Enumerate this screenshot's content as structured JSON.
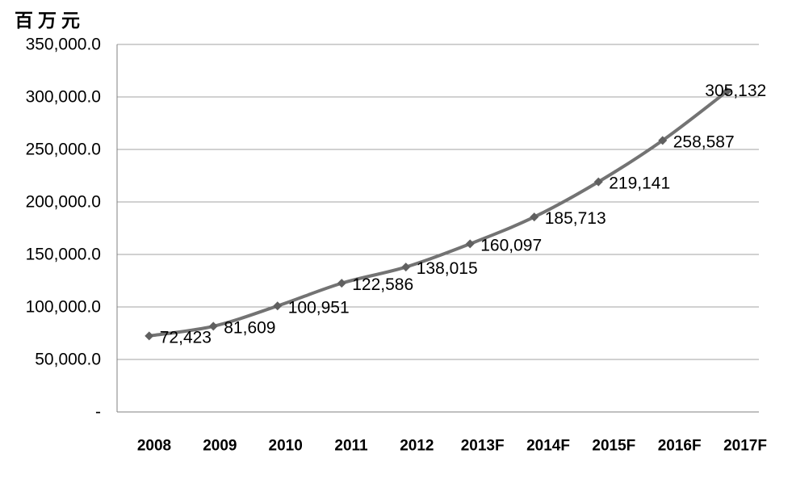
{
  "chart_data": {
    "type": "line",
    "title": "",
    "ylabel": "百万元",
    "xlabel": "",
    "categories": [
      "2008",
      "2009",
      "2010",
      "2011",
      "2012",
      "2013F",
      "2014F",
      "2015F",
      "2016F",
      "2017F"
    ],
    "series": [
      {
        "name": "",
        "values": [
          72423,
          81609,
          100951,
          122586,
          138015,
          160097,
          185713,
          219141,
          258587,
          305132
        ]
      }
    ],
    "data_labels": [
      "72,423",
      "81,609",
      "100,951",
      "122,586",
      "138,015",
      "160,097",
      "185,713",
      "219,141",
      "258,587",
      "305,132"
    ],
    "ylim": [
      0,
      350000
    ],
    "y_tick_interval": 50000,
    "y_tick_labels": [
      "-",
      "50,000.0",
      "100,000.0",
      "150,000.0",
      "200,000.0",
      "250,000.0",
      "300,000.0",
      "350,000.0"
    ],
    "grid": true,
    "legend": "none",
    "marker_shape": "diamond",
    "line_smoothed": true,
    "colors": {
      "line": "#737373",
      "marker": "#606060",
      "grid": "#a3a3a3",
      "axis": "#808080",
      "text": "#000000",
      "background": "#ffffff"
    }
  }
}
